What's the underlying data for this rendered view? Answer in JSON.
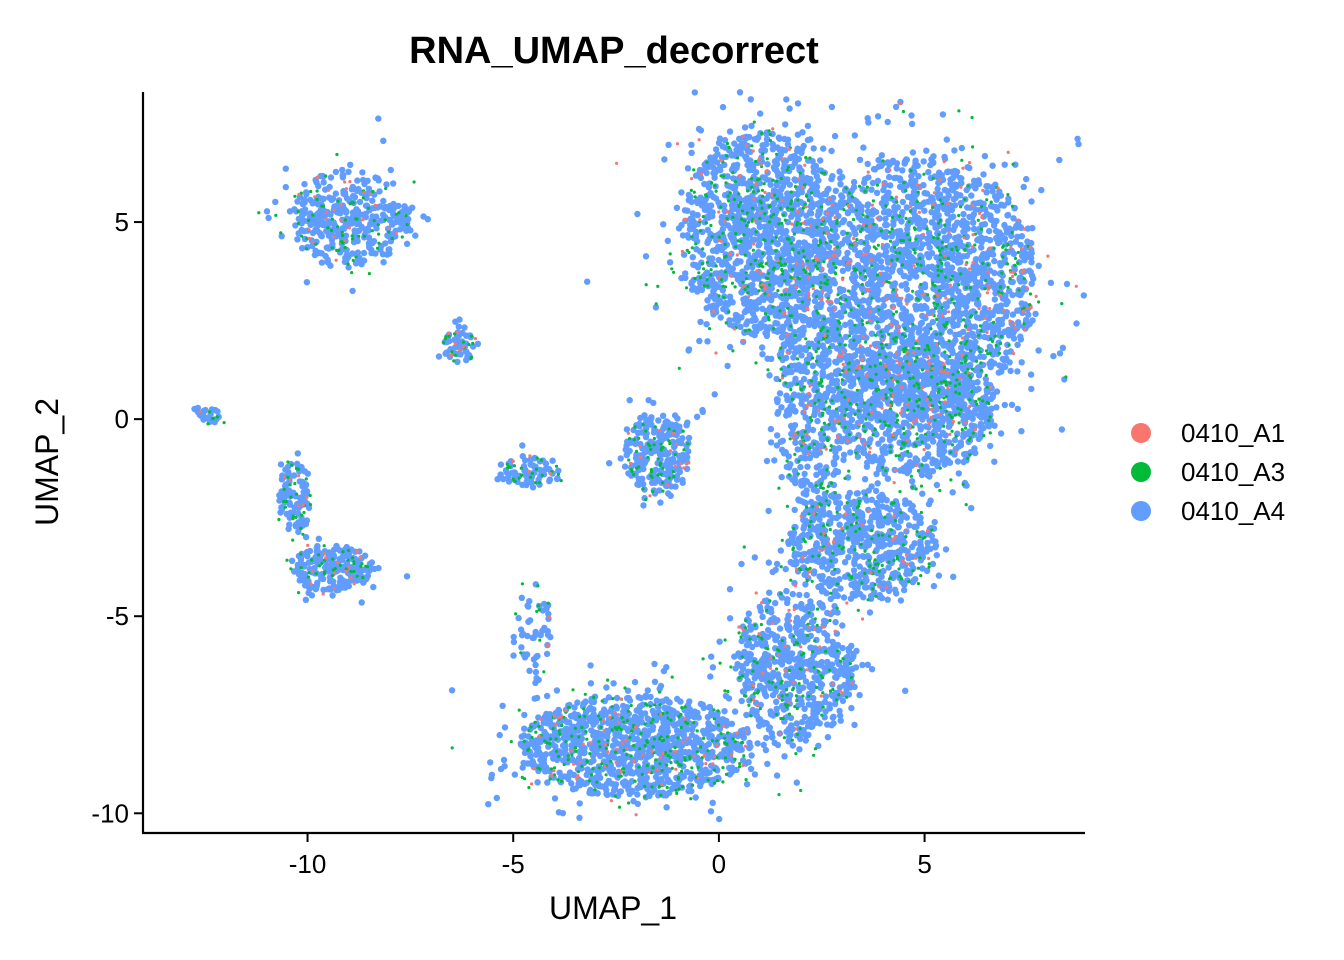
{
  "chart_data": {
    "type": "scatter",
    "title": "RNA_UMAP_decorrect",
    "xlabel": "UMAP_1",
    "ylabel": "UMAP_2",
    "xlim": [
      -14.0,
      8.9
    ],
    "ylim": [
      -10.5,
      8.3
    ],
    "xticks": [
      -10,
      -5,
      0,
      5
    ],
    "yticks": [
      -10,
      -5,
      0,
      5
    ],
    "xtick_labels": [
      "-10",
      "-5",
      "0",
      "5"
    ],
    "ytick_labels": [
      "-10",
      "-5",
      "0",
      "5"
    ],
    "grid": false,
    "legend_position": "right",
    "series": [
      {
        "name": "0410_A1",
        "color": "#F8766D"
      },
      {
        "name": "0410_A3",
        "color": "#00BA38"
      },
      {
        "name": "0410_A4",
        "color": "#619CFF"
      }
    ],
    "clusters": [
      {
        "cx": 1.0,
        "cy": 4.7,
        "rx": 1.9,
        "ry": 2.6,
        "n": 1500
      },
      {
        "cx": 5.0,
        "cy": 3.5,
        "rx": 2.7,
        "ry": 3.2,
        "n": 2200
      },
      {
        "cx": 4.7,
        "cy": 0.3,
        "rx": 2.0,
        "ry": 1.8,
        "n": 900
      },
      {
        "cx": 2.3,
        "cy": 0.5,
        "rx": 0.9,
        "ry": 2.8,
        "n": 500
      },
      {
        "cx": 3.5,
        "cy": -3.2,
        "rx": 1.8,
        "ry": 1.4,
        "n": 700
      },
      {
        "cx": 1.8,
        "cy": -6.3,
        "rx": 1.5,
        "ry": 1.9,
        "n": 700
      },
      {
        "cx": -2.0,
        "cy": -8.3,
        "rx": 2.8,
        "ry": 1.3,
        "n": 1300
      },
      {
        "cx": -1.5,
        "cy": -0.9,
        "rx": 0.8,
        "ry": 1.0,
        "n": 300
      },
      {
        "cx": -9.0,
        "cy": 5.1,
        "rx": 1.5,
        "ry": 1.2,
        "n": 450
      },
      {
        "cx": -9.4,
        "cy": -3.8,
        "rx": 1.0,
        "ry": 0.6,
        "n": 250
      },
      {
        "cx": -10.3,
        "cy": -2.0,
        "rx": 0.4,
        "ry": 0.9,
        "n": 120
      },
      {
        "cx": -6.3,
        "cy": 1.9,
        "rx": 0.4,
        "ry": 0.5,
        "n": 70
      },
      {
        "cx": -4.5,
        "cy": -1.3,
        "rx": 0.7,
        "ry": 0.4,
        "n": 90
      },
      {
        "cx": -12.4,
        "cy": 0.1,
        "rx": 0.3,
        "ry": 0.2,
        "n": 30
      },
      {
        "cx": -4.5,
        "cy": -5.5,
        "rx": 0.5,
        "ry": 1.2,
        "n": 60
      }
    ]
  }
}
